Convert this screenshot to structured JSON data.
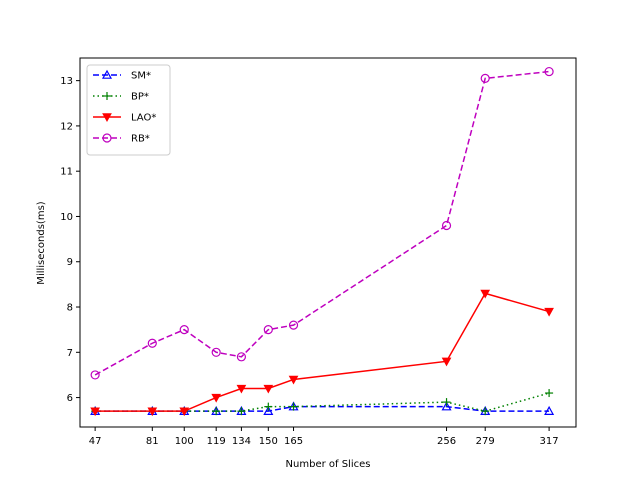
{
  "chart_data": {
    "type": "line",
    "title": "",
    "xlabel": "Number of Slices",
    "ylabel": "Milliseconds(ms)",
    "x": [
      47,
      81,
      100,
      119,
      134,
      150,
      165,
      256,
      279,
      317
    ],
    "xticks": [
      "47",
      "81",
      "100",
      "119",
      "134",
      "150",
      "165",
      "256",
      "279",
      "317"
    ],
    "xlim": [
      38,
      333
    ],
    "ylim": [
      5.35,
      13.5
    ],
    "yticks": [
      "6",
      "7",
      "8",
      "9",
      "10",
      "11",
      "12",
      "13"
    ],
    "legend_position": "top-left",
    "series": [
      {
        "name": "SM*",
        "values": [
          5.7,
          5.7,
          5.7,
          5.7,
          5.7,
          5.7,
          5.8,
          5.8,
          5.7,
          5.7
        ],
        "color": "#0000ff",
        "dash": "dashed",
        "marker": "triangle-up"
      },
      {
        "name": "BP*",
        "values": [
          5.7,
          5.7,
          5.7,
          5.7,
          5.7,
          5.8,
          5.8,
          5.9,
          5.7,
          6.1
        ],
        "color": "#008000",
        "dash": "dotted",
        "marker": "plus"
      },
      {
        "name": "LAO*",
        "values": [
          5.7,
          5.7,
          5.7,
          6.0,
          6.2,
          6.2,
          6.4,
          6.8,
          8.3,
          7.9
        ],
        "color": "#ff0000",
        "dash": "solid",
        "marker": "triangle-down"
      },
      {
        "name": "RB*",
        "values": [
          6.5,
          7.2,
          7.5,
          7.0,
          6.9,
          7.5,
          7.6,
          9.8,
          13.05,
          13.2
        ],
        "color": "#bf00bf",
        "dash": "dashed",
        "marker": "circle"
      }
    ]
  }
}
